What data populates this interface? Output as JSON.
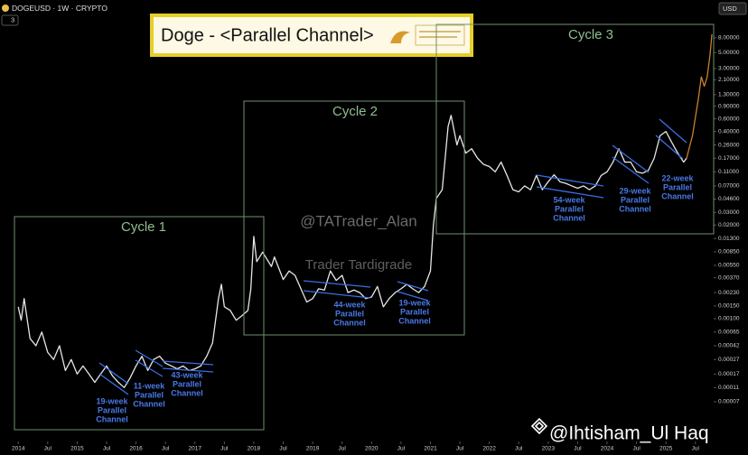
{
  "chart_data": {
    "type": "line",
    "symbol": "DOGEUSD · 1W · CRYPTO",
    "indicator_count": 3,
    "currency": "USD",
    "title": "Doge - <Parallel Channel>",
    "log_scale": true,
    "grid": false,
    "xlim": [
      2013.69,
      2025.81
    ],
    "xticks": [
      2014,
      {
        "value": 2014.5,
        "label": "Jul"
      },
      2015,
      {
        "value": 2015.5,
        "label": "Jul"
      },
      2016,
      {
        "value": 2016.5,
        "label": "Jul"
      },
      2017,
      {
        "value": 2017.5,
        "label": "Jul"
      },
      2018,
      {
        "value": 2018.5,
        "label": "Jul"
      },
      2019,
      {
        "value": 2019.5,
        "label": "Jul"
      },
      2020,
      {
        "value": 2020.5,
        "label": "Jul"
      },
      2021,
      {
        "value": 2021.5,
        "label": "Jul"
      },
      2022,
      {
        "value": 2022.5,
        "label": "Jul"
      },
      2023,
      {
        "value": 2023.5,
        "label": "Jul"
      },
      2024,
      {
        "value": 2024.5,
        "label": "Jul"
      },
      2025,
      {
        "value": 2025.5,
        "label": "Jul"
      }
    ],
    "ylim": [
      2.2e-05,
      16
    ],
    "yticks": [
      {
        "value": 8,
        "label": "8.00000"
      },
      {
        "value": 5,
        "label": "5.00000"
      },
      {
        "value": 3,
        "label": "3.00000"
      },
      {
        "value": 2.1,
        "label": "2.10000"
      },
      {
        "value": 1.3,
        "label": "1.30000"
      },
      {
        "value": 0.9,
        "label": "0.90000"
      },
      {
        "value": 0.6,
        "label": "0.60000"
      },
      {
        "value": 0.4,
        "label": "0.40000"
      },
      {
        "value": 0.26,
        "label": "0.26000"
      },
      {
        "value": 0.17,
        "label": "0.17000"
      },
      {
        "value": 0.11,
        "label": "0.11000"
      },
      {
        "value": 0.07,
        "label": "0.07000"
      },
      {
        "value": 0.046,
        "label": "0.04600"
      },
      {
        "value": 0.03,
        "label": "0.03000"
      },
      {
        "value": 0.02,
        "label": "0.02000"
      },
      {
        "value": 0.013,
        "label": "0.01300"
      },
      {
        "value": 0.0085,
        "label": "0.00850"
      },
      {
        "value": 0.0055,
        "label": "0.00550"
      },
      {
        "value": 0.0037,
        "label": "0.00370"
      },
      {
        "value": 0.0023,
        "label": "0.00230"
      },
      {
        "value": 0.0015,
        "label": "0.00150"
      },
      {
        "value": 0.001,
        "label": "0.00100"
      },
      {
        "value": 0.00065,
        "label": "0.00065"
      },
      {
        "value": 0.00042,
        "label": "0.00042"
      },
      {
        "value": 0.00027,
        "label": "0.00027"
      },
      {
        "value": 0.00017,
        "label": "0.00017"
      },
      {
        "value": 0.00011,
        "label": "0.00011"
      },
      {
        "value": 7e-05,
        "label": "0.00007"
      }
    ],
    "series": [
      {
        "color": "#e6e6e6",
        "x": [
          2014.0,
          2014.05,
          2014.1,
          2014.2,
          2014.3,
          2014.4,
          2014.5,
          2014.6,
          2014.7,
          2014.8,
          2014.9,
          2015.0,
          2015.1,
          2015.2,
          2015.3,
          2015.4,
          2015.5,
          2015.6,
          2015.7,
          2015.8,
          2015.9,
          2016.0,
          2016.1,
          2016.2,
          2016.3,
          2016.4,
          2016.5,
          2016.6,
          2016.7,
          2016.8,
          2016.9,
          2017.0,
          2017.1,
          2017.2,
          2017.3,
          2017.4,
          2017.45,
          2017.5,
          2017.6,
          2017.7,
          2017.8,
          2017.9,
          2017.95,
          2018.0,
          2018.05,
          2018.15,
          2018.3,
          2018.35,
          2018.5,
          2018.6,
          2018.7,
          2018.8,
          2018.9,
          2019.0,
          2019.1,
          2019.2,
          2019.3,
          2019.4,
          2019.5,
          2019.6,
          2019.7,
          2019.8,
          2019.9,
          2020.0,
          2020.1,
          2020.2,
          2020.3,
          2020.4,
          2020.5,
          2020.6,
          2020.7,
          2020.8,
          2020.9,
          2021.0,
          2021.05,
          2021.1,
          2021.2,
          2021.3,
          2021.35,
          2021.45,
          2021.5,
          2021.6,
          2021.7,
          2021.8,
          2021.9,
          2022.0,
          2022.1,
          2022.2,
          2022.3,
          2022.4,
          2022.5,
          2022.6,
          2022.7,
          2022.8,
          2022.9,
          2023.0,
          2023.1,
          2023.2,
          2023.3,
          2023.4,
          2023.5,
          2023.6,
          2023.7,
          2023.8,
          2023.9,
          2024.0,
          2024.1,
          2024.2,
          2024.3,
          2024.4,
          2024.5,
          2024.6,
          2024.7,
          2024.8,
          2024.9,
          2025.0,
          2025.1,
          2025.2,
          2025.3,
          2025.35
        ],
        "values": [
          0.00146,
          0.00095,
          0.0019,
          0.00053,
          0.00042,
          0.00065,
          0.00034,
          0.00027,
          0.00042,
          0.00019,
          0.00027,
          0.00017,
          0.00022,
          0.00017,
          0.00013,
          0.00017,
          0.00022,
          0.00016,
          0.00013,
          0.00011,
          0.00015,
          0.00022,
          0.0003,
          0.00019,
          0.00027,
          0.0003,
          0.00024,
          0.00022,
          0.0002,
          0.00022,
          0.00019,
          0.0002,
          0.00022,
          0.0003,
          0.00046,
          0.0019,
          0.003,
          0.00146,
          0.0013,
          0.00095,
          0.0011,
          0.0013,
          0.0026,
          0.0139,
          0.0062,
          0.0084,
          0.0053,
          0.0072,
          0.0035,
          0.0046,
          0.004,
          0.0026,
          0.0017,
          0.0019,
          0.0026,
          0.0025,
          0.0046,
          0.0034,
          0.004,
          0.0023,
          0.0025,
          0.0023,
          0.0019,
          0.002,
          0.0028,
          0.00146,
          0.0019,
          0.0023,
          0.0026,
          0.003,
          0.0026,
          0.0023,
          0.0028,
          0.0046,
          0.0197,
          0.047,
          0.062,
          0.47,
          0.67,
          0.26,
          0.35,
          0.2,
          0.23,
          0.17,
          0.14,
          0.13,
          0.11,
          0.15,
          0.098,
          0.062,
          0.058,
          0.07,
          0.062,
          0.098,
          0.062,
          0.08,
          0.1,
          0.08,
          0.076,
          0.07,
          0.065,
          0.07,
          0.062,
          0.07,
          0.098,
          0.11,
          0.15,
          0.23,
          0.15,
          0.15,
          0.11,
          0.105,
          0.115,
          0.17,
          0.35,
          0.4,
          0.28,
          0.2,
          0.15,
          0.17
        ]
      },
      {
        "color": "#c8802f",
        "x": [
          2025.35,
          2025.45,
          2025.55,
          2025.6,
          2025.65,
          2025.7,
          2025.75,
          2025.78
        ],
        "values": [
          0.17,
          0.35,
          1.14,
          2.3,
          1.7,
          2.3,
          4.8,
          9.0
        ]
      }
    ],
    "cycles": [
      "Cycle 1",
      "Cycle 2",
      "Cycle 3"
    ],
    "channels": [
      [
        "19-week",
        "Parallel",
        "Channel"
      ],
      [
        "11-week",
        "Parallel",
        "Channel"
      ],
      [
        "43-week",
        "Parallel",
        "Channel"
      ],
      [
        "44-week",
        "Parallel",
        "Channel"
      ],
      [
        "19-week",
        "Parallel",
        "Channel"
      ],
      [
        "54-week",
        "Parallel",
        "Channel"
      ],
      [
        "29-week",
        "Parallel",
        "Channel"
      ],
      [
        "22-week",
        "Parallel",
        "Channel"
      ]
    ],
    "watermarks": [
      "@TATrader_Alan",
      "Trader Tardigrade"
    ],
    "credit": "@Ihtisham_Ul Haq"
  }
}
